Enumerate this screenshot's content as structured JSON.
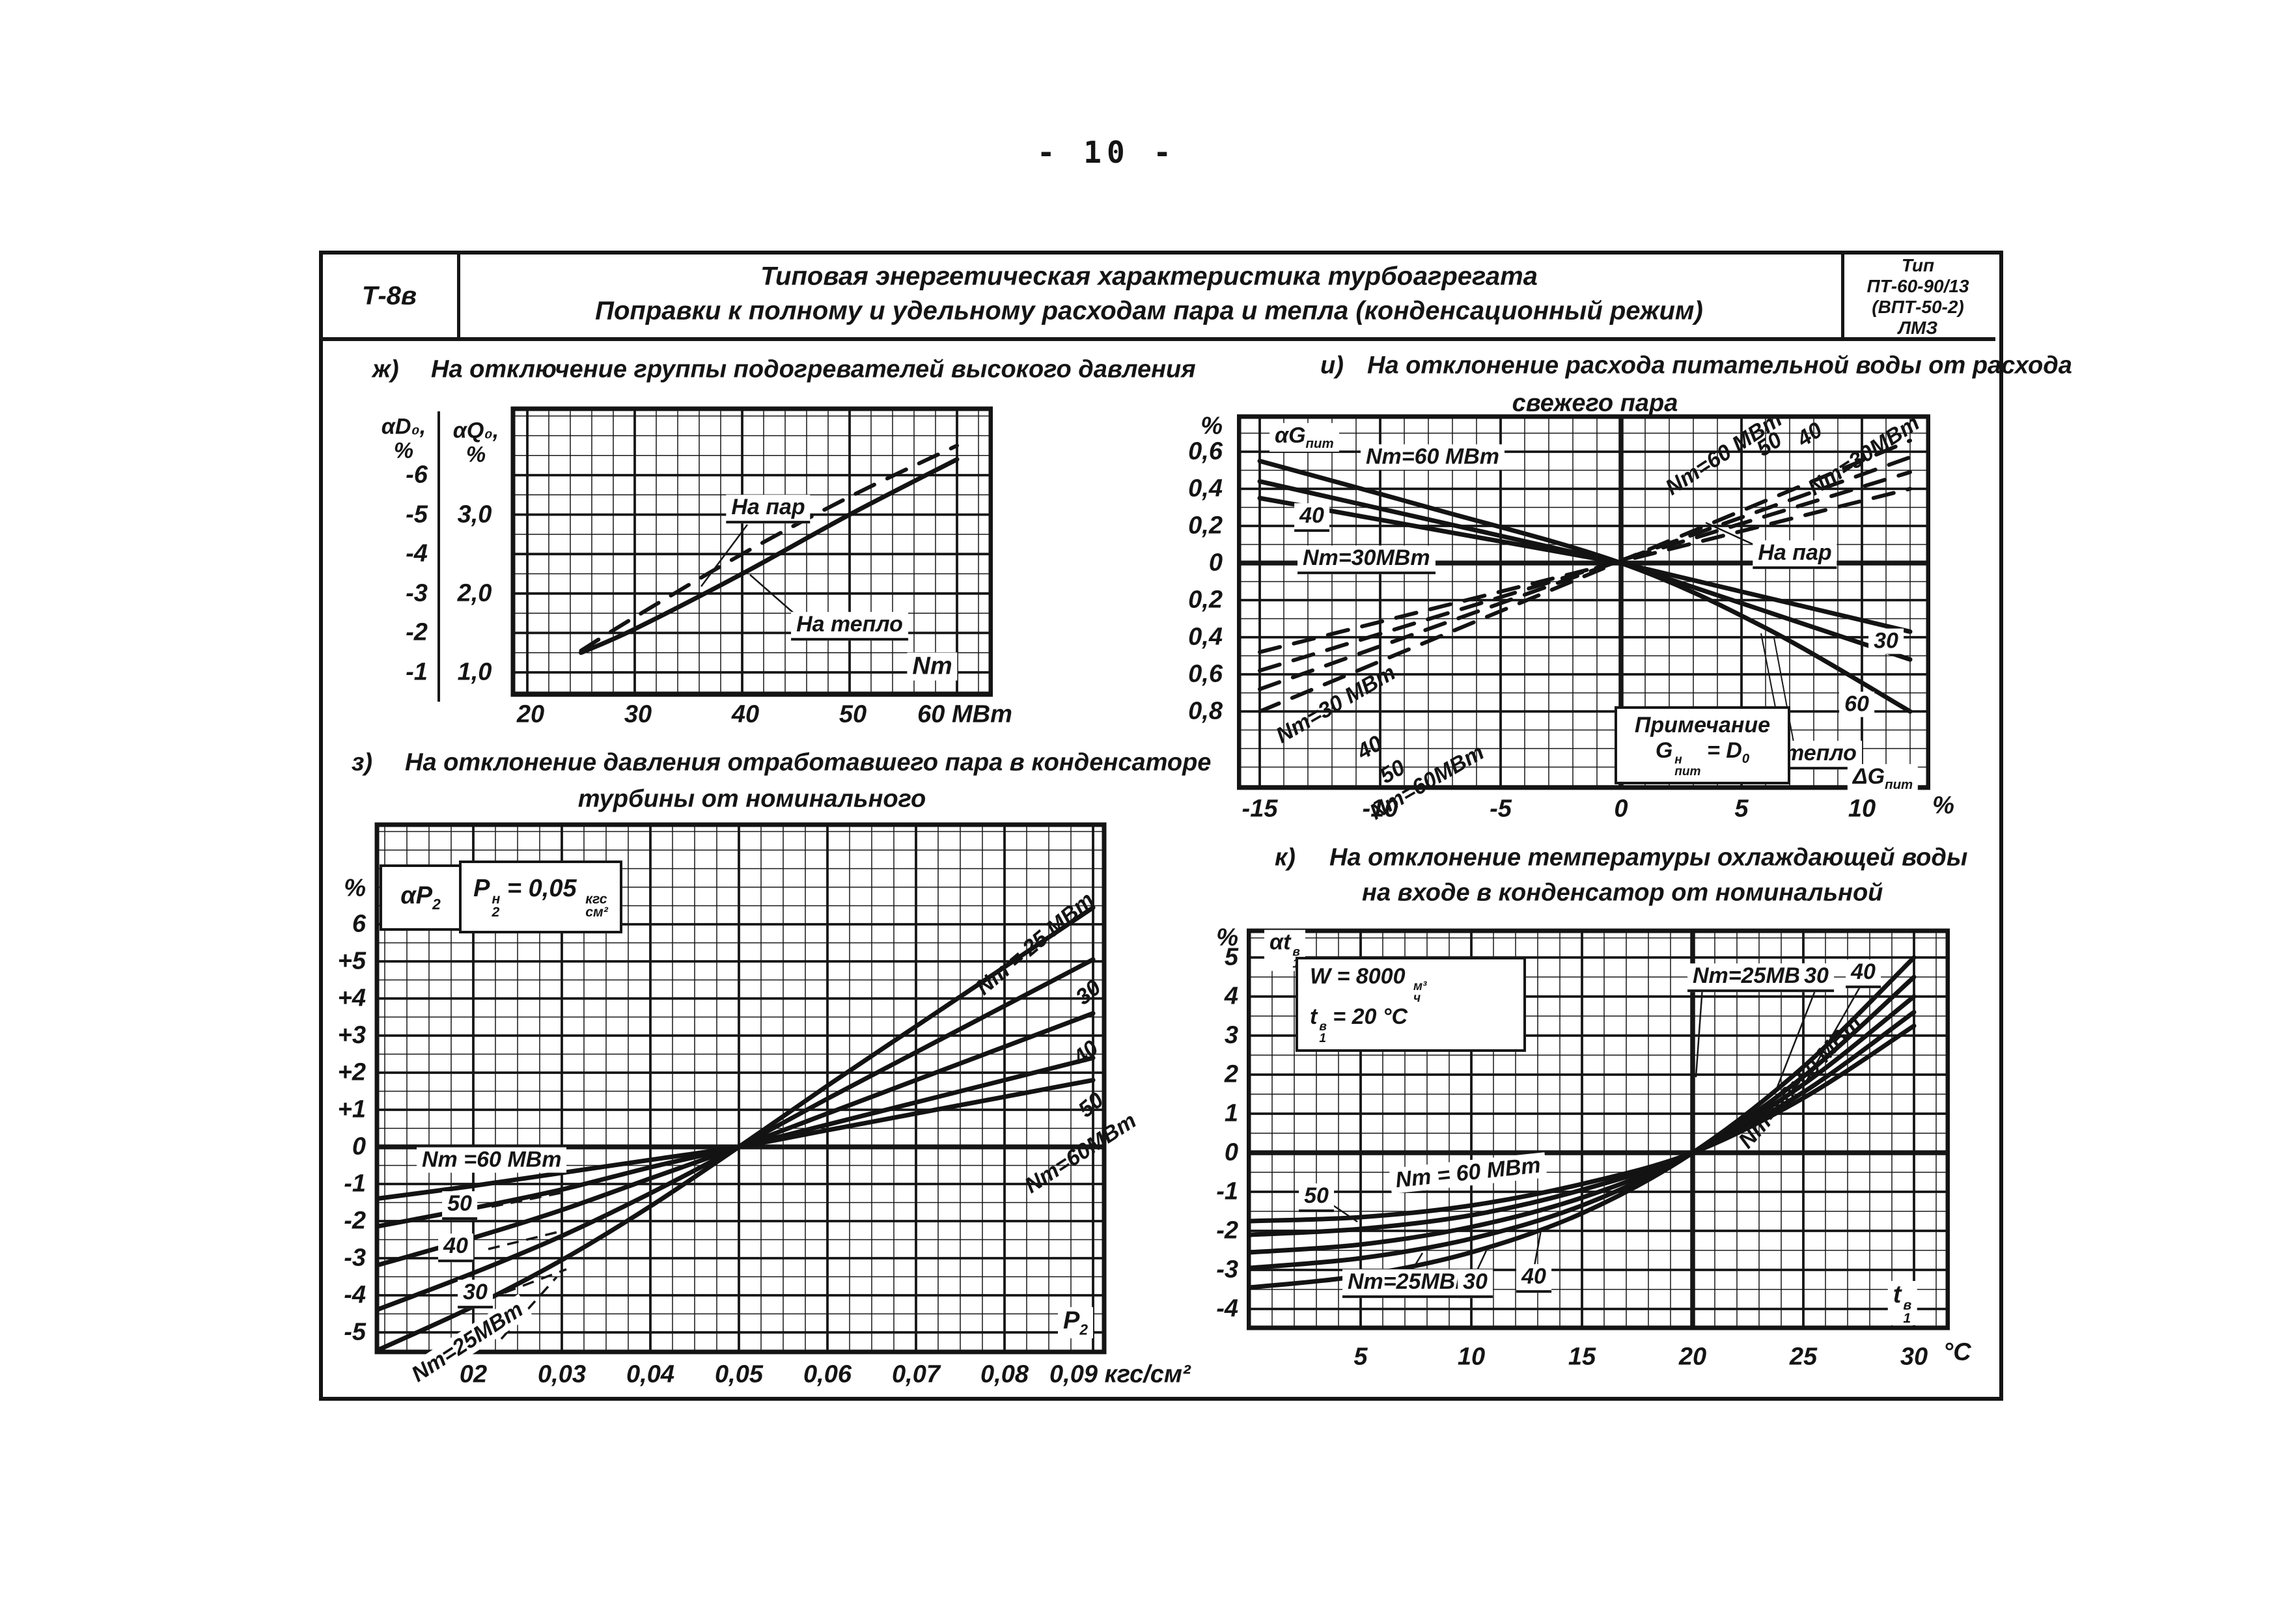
{
  "page": {
    "number": "- 10 -"
  },
  "title_block": {
    "code": "Т-8в",
    "title_line1": "Типовая энергетическая характеристика турбоагрегата",
    "title_line2": "Поправки к полному и удельному расходам пара и тепла (конденсационный режим)",
    "type_label": "Тип",
    "type_line1": "ПТ-60-90/13",
    "type_line2": "(ВПТ-50-2)",
    "type_line3": "ЛМЗ"
  },
  "chart_zh": {
    "prefix": "ж)",
    "title": "На отключение группы подогревателей высокого давления",
    "head_d1": "αD₀,",
    "head_d2": "%",
    "head_q1": "αQ₀,",
    "head_q2": "%",
    "ytd": [
      "-6",
      "-5",
      "-4",
      "-3",
      "-2",
      "-1"
    ],
    "ytq": [
      "3,0",
      "2,0",
      "1,0"
    ],
    "xt": [
      "20",
      "30",
      "40",
      "50",
      "60 МВт"
    ],
    "lbl_par": "На пар",
    "lbl_teplo": "На тепло",
    "lbl_nt": "Nт"
  },
  "chart_i": {
    "prefix": "и)",
    "title1": "На отклонение расхода питательной воды от расхода",
    "title2": "свежего пара",
    "corner": {
      "main": "αG",
      "sub": "пит"
    },
    "yt": [
      "%",
      "0,6",
      "0,4",
      "0,2",
      "0",
      "0,2",
      "0,4",
      "0,6",
      "0,8"
    ],
    "xt": [
      "-15",
      "-10",
      "-5",
      "0",
      "5",
      "10",
      "%"
    ],
    "s60": "Nт=60 МВт",
    "s40": "40",
    "s30": "Nт=30МВт",
    "r30": "30",
    "r60": "60",
    "d60": "Nт=60 МВт",
    "d50": "50",
    "d40": "40",
    "d30": "Nт=30МВт",
    "ld30": "Nт=30 МВт",
    "ld40": "40",
    "ld50": "50",
    "ld60": "Nт=60МВт",
    "lbl_par": "На пар",
    "lbl_teplo": "На тепло",
    "note_line1": "Примечание",
    "note_g": "G",
    "note_g_sup": "н",
    "note_g_sub": "пит",
    "note_eq": "= D",
    "note_eq_sub": "0",
    "xsym": {
      "main": "ΔG",
      "sub": "пит"
    }
  },
  "chart_z": {
    "prefix": "з)",
    "title1": "На отклонение давления отработавшего пара в конденсаторе",
    "title2": "турбины от номинального",
    "corner": {
      "main": "αP",
      "sub": "2"
    },
    "note_p": "P",
    "note_p_sup": "н",
    "note_p_sub": "2",
    "note_rest": "= 0,05",
    "note_unit_sup": "кгс",
    "note_unit_sub": "см²",
    "yt": [
      "%",
      "6",
      "+5",
      "+4",
      "+3",
      "+2",
      "+1",
      "0",
      "-1",
      "-2",
      "-3",
      "-4",
      "-5"
    ],
    "xt": [
      "02",
      "0,03",
      "0,04",
      "0,05",
      "0,06",
      "0,07",
      "0,08"
    ],
    "xlast": "0,09 кгс/см²",
    "r25": "Nт = 25 МВт",
    "r30": "30",
    "r40": "40",
    "r50": "50",
    "r60": "Nт=60МВт",
    "l60": "Nт =60 МВт",
    "l50": "50",
    "l40": "40",
    "l30": "30",
    "l25": "Nт=25МВт",
    "xsym": {
      "main": "P",
      "sub": "2"
    }
  },
  "chart_k": {
    "prefix": "к)",
    "title1": "На отклонение температуры охлаждающей воды",
    "title2": "на входе в конденсатор от номинальной",
    "corner": {
      "main": "αt",
      "sup": "в",
      "sub": "1"
    },
    "note_w": "W = 8000",
    "note_w_sup": "м³",
    "note_w_sub": "ч",
    "note_t": "t",
    "note_t_sup": "в",
    "note_t_sub": "1",
    "note_t_rest": "= 20 °C",
    "yt": [
      "%",
      "5",
      "4",
      "3",
      "2",
      "1",
      "0",
      "-1",
      "-2",
      "-3",
      "-4"
    ],
    "xt": [
      "5",
      "10",
      "15",
      "20",
      "25",
      "30"
    ],
    "xunit": "°C",
    "t25": "Nт=25МВт",
    "t30": "30",
    "t40": "40",
    "rot5060": "Nт=50÷60 МВт",
    "l50": "50",
    "l60": "Nт = 60 МВт",
    "b25": "Nт=25МВт",
    "b30": "30",
    "b40": "40",
    "xsym": {
      "main": "t",
      "sup": "в",
      "sub": "1"
    }
  },
  "chart_data": [
    {
      "id": "zh",
      "type": "line",
      "title": "ж) На отключение группы подогревателей высокого давления",
      "xlabel": "Nт, МВт",
      "xticks": [
        20,
        30,
        40,
        50,
        60
      ],
      "y_axis_left": {
        "label": "αD₀, %",
        "ticks": [
          -6,
          -5,
          -4,
          -3,
          -2,
          -1
        ]
      },
      "y_axis_left2": {
        "label": "αQ₀, %",
        "ticks": [
          3.0,
          2.0,
          1.0
        ]
      },
      "grid": "on",
      "series": [
        {
          "name": "На пар",
          "scale": "D",
          "style": "dashed",
          "points": [
            [
              25,
              -1.55
            ],
            [
              30,
              -2.4
            ],
            [
              40,
              -4.0
            ],
            [
              50,
              -5.45
            ],
            [
              60,
              -6.75
            ]
          ]
        },
        {
          "name": "На тепло",
          "scale": "Q",
          "style": "solid",
          "points": [
            [
              25,
              1.25
            ],
            [
              30,
              1.55
            ],
            [
              40,
              2.25
            ],
            [
              50,
              3.0
            ],
            [
              60,
              3.7
            ]
          ]
        }
      ]
    },
    {
      "id": "i",
      "type": "line",
      "title": "и) На отклонение расхода питательной воды от расхода свежего пара",
      "xlabel": "ΔGпит, %",
      "ylabel": "αGпит, %",
      "xticks": [
        -15,
        -10,
        -5,
        0,
        5,
        10
      ],
      "yticks": [
        0.6,
        0.4,
        0.2,
        0,
        -0.2,
        -0.4,
        -0.6,
        -0.8
      ],
      "note": "Примечание: Gнпит = D0",
      "grid": "on",
      "series": [
        {
          "name": "На тепло, Nт=60 МВт",
          "style": "solid",
          "points": [
            [
              -15,
              0.55
            ],
            [
              -8,
              0.3
            ],
            [
              0,
              0
            ],
            [
              6,
              -0.35
            ],
            [
              12,
              -0.8
            ]
          ]
        },
        {
          "name": "На тепло, Nт=40 МВт",
          "style": "solid",
          "points": [
            [
              -15,
              0.44
            ],
            [
              0,
              0
            ],
            [
              12,
              -0.52
            ]
          ]
        },
        {
          "name": "На тепло, Nт=30 МВт",
          "style": "solid",
          "points": [
            [
              -15,
              0.35
            ],
            [
              0,
              0
            ],
            [
              12,
              -0.37
            ]
          ]
        },
        {
          "name": "На пар, Nт=30 МВт",
          "style": "dashed",
          "points": [
            [
              -15,
              -0.48
            ],
            [
              12,
              0.4
            ]
          ]
        },
        {
          "name": "На пар, Nт=40 МВт",
          "style": "dashed",
          "points": [
            [
              -15,
              -0.58
            ],
            [
              12,
              0.49
            ]
          ]
        },
        {
          "name": "На пар, Nт=50 МВт",
          "style": "dashed",
          "points": [
            [
              -15,
              -0.68
            ],
            [
              12,
              0.57
            ]
          ]
        },
        {
          "name": "На пар, Nт=60 МВт",
          "style": "dashed",
          "points": [
            [
              -15,
              -0.8
            ],
            [
              12,
              0.66
            ]
          ]
        }
      ]
    },
    {
      "id": "z",
      "type": "line",
      "title": "з) На отклонение давления отработавшего пара в конденсаторе турбины от номинального",
      "xlabel": "P2, кгс/см²",
      "ylabel": "αP2, %",
      "note": "P2н = 0,05 кгс/см²",
      "xticks": [
        0.02,
        0.03,
        0.04,
        0.05,
        0.06,
        0.07,
        0.08,
        0.09
      ],
      "yticks": [
        6,
        5,
        4,
        3,
        2,
        1,
        0,
        -1,
        -2,
        -3,
        -4,
        -5
      ],
      "grid": "on",
      "series": [
        {
          "name": "Nт=25 МВт",
          "style": "solid",
          "points": [
            [
              0.009,
              -5.5
            ],
            [
              0.02,
              -4.3
            ],
            [
              0.03,
              -3.05
            ],
            [
              0.04,
              -1.6
            ],
            [
              0.05,
              0
            ],
            [
              0.06,
              1.65
            ],
            [
              0.07,
              3.25
            ],
            [
              0.08,
              4.85
            ],
            [
              0.09,
              6.45
            ]
          ]
        },
        {
          "name": "Nт=30 МВт",
          "style": "solid",
          "points": [
            [
              0.009,
              -4.4
            ],
            [
              0.02,
              -3.4
            ],
            [
              0.03,
              -2.4
            ],
            [
              0.04,
              -1.25
            ],
            [
              0.05,
              0
            ],
            [
              0.06,
              1.3
            ],
            [
              0.07,
              2.55
            ],
            [
              0.08,
              3.8
            ],
            [
              0.09,
              5.05
            ]
          ]
        },
        {
          "name": "Nт=40 МВт",
          "style": "solid",
          "points": [
            [
              0.009,
              -3.2
            ],
            [
              0.02,
              -2.45
            ],
            [
              0.03,
              -1.7
            ],
            [
              0.04,
              -0.85
            ],
            [
              0.05,
              0
            ],
            [
              0.06,
              0.9
            ],
            [
              0.07,
              1.8
            ],
            [
              0.08,
              2.7
            ],
            [
              0.09,
              3.6
            ]
          ]
        },
        {
          "name": "Nт=50 МВт",
          "style": "solid",
          "points": [
            [
              0.009,
              -2.15
            ],
            [
              0.02,
              -1.65
            ],
            [
              0.03,
              -1.15
            ],
            [
              0.04,
              -0.55
            ],
            [
              0.05,
              0
            ],
            [
              0.06,
              0.6
            ],
            [
              0.07,
              1.2
            ],
            [
              0.08,
              1.8
            ],
            [
              0.09,
              2.4
            ]
          ]
        },
        {
          "name": "Nт=60 МВт",
          "style": "solid",
          "points": [
            [
              0.009,
              -1.4
            ],
            [
              0.02,
              -1.05
            ],
            [
              0.03,
              -0.7
            ],
            [
              0.04,
              -0.35
            ],
            [
              0.05,
              0
            ],
            [
              0.06,
              0.45
            ],
            [
              0.07,
              0.9
            ],
            [
              0.08,
              1.35
            ],
            [
              0.09,
              1.8
            ]
          ]
        }
      ]
    },
    {
      "id": "k",
      "type": "line",
      "title": "к) На отклонение температуры охлаждающей воды на входе в конденсатор от номинальной",
      "xlabel": "t1в, °C",
      "ylabel": "αt1в, %",
      "note": "W = 8000 м³/ч; t1в = 20 °C",
      "xticks": [
        5,
        10,
        15,
        20,
        25,
        30
      ],
      "yticks": [
        5,
        4,
        3,
        2,
        1,
        0,
        -1,
        -2,
        -3,
        -4
      ],
      "grid": "on",
      "series": [
        {
          "name": "Nт=25 МВт",
          "style": "solid",
          "points": [
            [
              0,
              -3.45
            ],
            [
              5,
              -3.15
            ],
            [
              10,
              -2.55
            ],
            [
              15,
              -1.55
            ],
            [
              20,
              0
            ],
            [
              25,
              2.2
            ],
            [
              30,
              5.0
            ]
          ]
        },
        {
          "name": "Nт=30 МВт",
          "style": "solid",
          "points": [
            [
              0,
              -2.95
            ],
            [
              5,
              -2.7
            ],
            [
              10,
              -2.2
            ],
            [
              15,
              -1.35
            ],
            [
              20,
              0
            ],
            [
              25,
              1.95
            ],
            [
              30,
              4.5
            ]
          ]
        },
        {
          "name": "Nт=40 МВт",
          "style": "solid",
          "points": [
            [
              0,
              -2.55
            ],
            [
              5,
              -2.35
            ],
            [
              10,
              -1.9
            ],
            [
              15,
              -1.15
            ],
            [
              20,
              0
            ],
            [
              25,
              1.75
            ],
            [
              30,
              4.0
            ]
          ]
        },
        {
          "name": "Nт=50 МВт",
          "style": "solid",
          "points": [
            [
              0,
              -2.1
            ],
            [
              5,
              -1.95
            ],
            [
              10,
              -1.6
            ],
            [
              15,
              -0.95
            ],
            [
              20,
              0
            ],
            [
              25,
              1.55
            ],
            [
              30,
              3.6
            ]
          ]
        },
        {
          "name": "Nт=60 МВт",
          "style": "solid",
          "points": [
            [
              0,
              -1.75
            ],
            [
              5,
              -1.65
            ],
            [
              10,
              -1.35
            ],
            [
              15,
              -0.8
            ],
            [
              20,
              0
            ],
            [
              25,
              1.4
            ],
            [
              30,
              3.25
            ]
          ]
        }
      ]
    }
  ]
}
